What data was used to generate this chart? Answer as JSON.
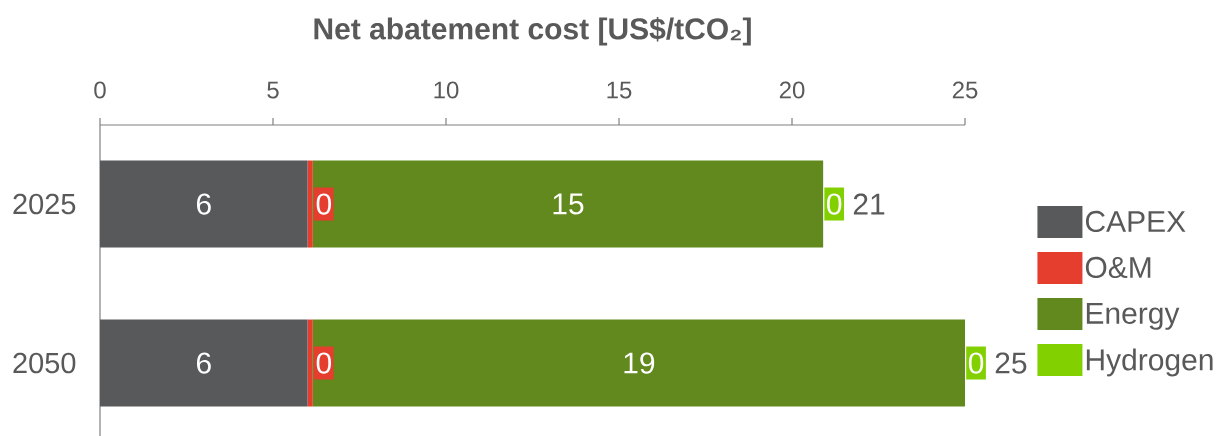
{
  "chart_data": {
    "type": "bar",
    "orientation": "horizontal",
    "stacked": true,
    "xlabel": "Net abatement cost [US$/tCO₂]",
    "categories": [
      "2025",
      "2050"
    ],
    "series": [
      {
        "name": "CAPEX",
        "color": "#58595b",
        "values": [
          6.0,
          6.0
        ],
        "value_labels": [
          "6",
          "6"
        ]
      },
      {
        "name": "O&M",
        "color": "#e53d2e",
        "values": [
          0.15,
          0.15
        ],
        "value_labels": [
          "0",
          "0"
        ]
      },
      {
        "name": "Energy",
        "color": "#62891e",
        "values": [
          14.75,
          18.85
        ],
        "value_labels": [
          "15",
          "19"
        ]
      },
      {
        "name": "Hydrogen",
        "color": "#83d000",
        "values": [
          0,
          0
        ],
        "value_labels": [
          "0",
          "0"
        ]
      }
    ],
    "totals": [
      "21",
      "25"
    ],
    "xlim": [
      0,
      25
    ],
    "xticks": [
      0,
      5,
      10,
      15,
      20,
      25
    ],
    "legend": "right"
  }
}
